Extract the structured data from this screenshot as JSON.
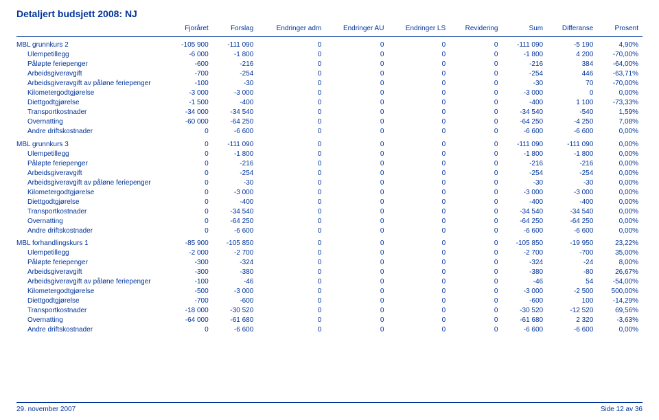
{
  "title": "Detaljert budsjett 2008: NJ",
  "columns": [
    "Fjoråret",
    "Forslag",
    "Endringer adm",
    "Endringer AU",
    "Endringer LS",
    "Revidering",
    "Sum",
    "Differanse",
    "Prosent"
  ],
  "footer_left": "29. november 2007",
  "footer_right": "Side 12 av 36",
  "groups": [
    {
      "label": "MBL grunnkurs 2",
      "cells": [
        "-105 900",
        "-111 090",
        "0",
        "0",
        "0",
        "0",
        "-111 090",
        "-5 190",
        "4,90%"
      ],
      "rows": [
        {
          "label": "Ulempetillegg",
          "cells": [
            "-6 000",
            "-1 800",
            "0",
            "0",
            "0",
            "0",
            "-1 800",
            "4 200",
            "-70,00%"
          ]
        },
        {
          "label": "Påløpte feriepenger",
          "cells": [
            "-600",
            "-216",
            "0",
            "0",
            "0",
            "0",
            "-216",
            "384",
            "-64,00%"
          ]
        },
        {
          "label": "Arbeidsgiveravgift",
          "cells": [
            "-700",
            "-254",
            "0",
            "0",
            "0",
            "0",
            "-254",
            "446",
            "-63,71%"
          ]
        },
        {
          "label": "Arbeidsgiveravgift av påløne feriepenger",
          "cells": [
            "-100",
            "-30",
            "0",
            "0",
            "0",
            "0",
            "-30",
            "70",
            "-70,00%"
          ]
        },
        {
          "label": "Kilometergodtgjørelse",
          "cells": [
            "-3 000",
            "-3 000",
            "0",
            "0",
            "0",
            "0",
            "-3 000",
            "0",
            "0,00%"
          ]
        },
        {
          "label": "Diettgodtgjørelse",
          "cells": [
            "-1 500",
            "-400",
            "0",
            "0",
            "0",
            "0",
            "-400",
            "1 100",
            "-73,33%"
          ]
        },
        {
          "label": "Transportkostnader",
          "cells": [
            "-34 000",
            "-34 540",
            "0",
            "0",
            "0",
            "0",
            "-34 540",
            "-540",
            "1,59%"
          ]
        },
        {
          "label": "Overnatting",
          "cells": [
            "-60 000",
            "-64 250",
            "0",
            "0",
            "0",
            "0",
            "-64 250",
            "-4 250",
            "7,08%"
          ]
        },
        {
          "label": "Andre driftskostnader",
          "cells": [
            "0",
            "-6 600",
            "0",
            "0",
            "0",
            "0",
            "-6 600",
            "-6 600",
            "0,00%"
          ]
        }
      ]
    },
    {
      "label": "MBL grunnkurs 3",
      "cells": [
        "0",
        "-111 090",
        "0",
        "0",
        "0",
        "0",
        "-111 090",
        "-111 090",
        "0,00%"
      ],
      "rows": [
        {
          "label": "Ulempetillegg",
          "cells": [
            "0",
            "-1 800",
            "0",
            "0",
            "0",
            "0",
            "-1 800",
            "-1 800",
            "0,00%"
          ]
        },
        {
          "label": "Påløpte feriepenger",
          "cells": [
            "0",
            "-216",
            "0",
            "0",
            "0",
            "0",
            "-216",
            "-216",
            "0,00%"
          ]
        },
        {
          "label": "Arbeidsgiveravgift",
          "cells": [
            "0",
            "-254",
            "0",
            "0",
            "0",
            "0",
            "-254",
            "-254",
            "0,00%"
          ]
        },
        {
          "label": "Arbeidsgiveravgift av påløne feriepenger",
          "cells": [
            "0",
            "-30",
            "0",
            "0",
            "0",
            "0",
            "-30",
            "-30",
            "0,00%"
          ]
        },
        {
          "label": "Kilometergodtgjørelse",
          "cells": [
            "0",
            "-3 000",
            "0",
            "0",
            "0",
            "0",
            "-3 000",
            "-3 000",
            "0,00%"
          ]
        },
        {
          "label": "Diettgodtgjørelse",
          "cells": [
            "0",
            "-400",
            "0",
            "0",
            "0",
            "0",
            "-400",
            "-400",
            "0,00%"
          ]
        },
        {
          "label": "Transportkostnader",
          "cells": [
            "0",
            "-34 540",
            "0",
            "0",
            "0",
            "0",
            "-34 540",
            "-34 540",
            "0,00%"
          ]
        },
        {
          "label": "Overnatting",
          "cells": [
            "0",
            "-64 250",
            "0",
            "0",
            "0",
            "0",
            "-64 250",
            "-64 250",
            "0,00%"
          ]
        },
        {
          "label": "Andre driftskostnader",
          "cells": [
            "0",
            "-6 600",
            "0",
            "0",
            "0",
            "0",
            "-6 600",
            "-6 600",
            "0,00%"
          ]
        }
      ]
    },
    {
      "label": "MBL forhandlingskurs 1",
      "cells": [
        "-85 900",
        "-105 850",
        "0",
        "0",
        "0",
        "0",
        "-105 850",
        "-19 950",
        "23,22%"
      ],
      "rows": [
        {
          "label": "Ulempetillegg",
          "cells": [
            "-2 000",
            "-2 700",
            "0",
            "0",
            "0",
            "0",
            "-2 700",
            "-700",
            "35,00%"
          ]
        },
        {
          "label": "Påløpte feriepenger",
          "cells": [
            "-300",
            "-324",
            "0",
            "0",
            "0",
            "0",
            "-324",
            "-24",
            "8,00%"
          ]
        },
        {
          "label": "Arbeidsgiveravgift",
          "cells": [
            "-300",
            "-380",
            "0",
            "0",
            "0",
            "0",
            "-380",
            "-80",
            "26,67%"
          ]
        },
        {
          "label": "Arbeidsgiveravgift av påløne feriepenger",
          "cells": [
            "-100",
            "-46",
            "0",
            "0",
            "0",
            "0",
            "-46",
            "54",
            "-54,00%"
          ]
        },
        {
          "label": "Kilometergodtgjørelse",
          "cells": [
            "-500",
            "-3 000",
            "0",
            "0",
            "0",
            "0",
            "-3 000",
            "-2 500",
            "500,00%"
          ]
        },
        {
          "label": "Diettgodtgjørelse",
          "cells": [
            "-700",
            "-600",
            "0",
            "0",
            "0",
            "0",
            "-600",
            "100",
            "-14,29%"
          ]
        },
        {
          "label": "Transportkostnader",
          "cells": [
            "-18 000",
            "-30 520",
            "0",
            "0",
            "0",
            "0",
            "-30 520",
            "-12 520",
            "69,56%"
          ]
        },
        {
          "label": "Overnatting",
          "cells": [
            "-64 000",
            "-61 680",
            "0",
            "0",
            "0",
            "0",
            "-61 680",
            "2 320",
            "-3,63%"
          ]
        },
        {
          "label": "Andre driftskostnader",
          "cells": [
            "0",
            "-6 600",
            "0",
            "0",
            "0",
            "0",
            "-6 600",
            "-6 600",
            "0,00%"
          ]
        }
      ]
    }
  ]
}
